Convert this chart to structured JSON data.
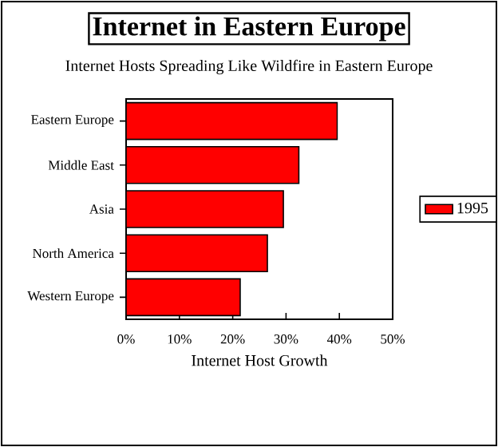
{
  "chart_data": {
    "type": "bar",
    "orientation": "horizontal",
    "title": "Internet in Eastern Europe",
    "subtitle": "Internet Hosts Spreading Like Wildfire in Eastern Europe",
    "xlabel": "Internet Host Growth",
    "categories": [
      "Eastern Europe",
      "Middle East",
      "Asia",
      "North America",
      "Western Europe"
    ],
    "series": [
      {
        "name": "1995",
        "color": "#ff0000",
        "values": [
          39.6,
          32.4,
          29.5,
          26.5,
          21.4
        ]
      }
    ],
    "xlim": [
      0,
      50
    ],
    "xticks": [
      {
        "value": 0,
        "label": "0%"
      },
      {
        "value": 10,
        "label": "10%"
      },
      {
        "value": 20,
        "label": "20%"
      },
      {
        "value": 30,
        "label": "30%"
      },
      {
        "value": 40,
        "label": "40%"
      },
      {
        "value": 50,
        "label": "50%"
      }
    ],
    "grid": false,
    "legend": "right"
  }
}
